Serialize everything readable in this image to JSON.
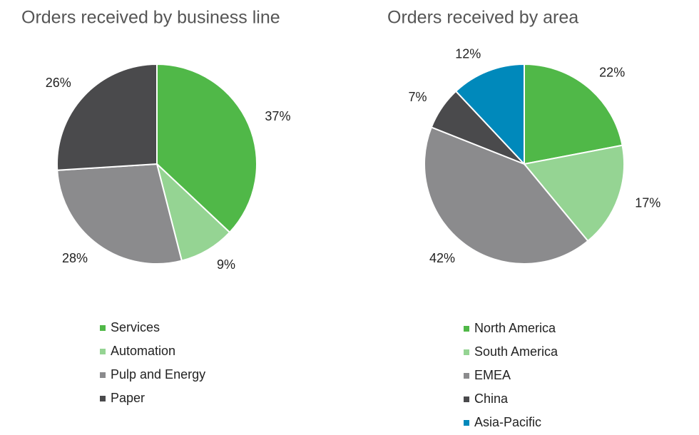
{
  "chart_data": [
    {
      "type": "pie",
      "title": "Orders received by business line",
      "categories": [
        "Services",
        "Automation",
        "Pulp and Energy",
        "Paper"
      ],
      "values": [
        37,
        9,
        28,
        26
      ],
      "value_labels": [
        "37%",
        "9%",
        "28%",
        "26%"
      ],
      "colors": [
        "#50b848",
        "#95d493",
        "#8b8b8d",
        "#4a4a4c"
      ]
    },
    {
      "type": "pie",
      "title": "Orders received by area",
      "categories": [
        "North America",
        "South America",
        "EMEA",
        "China",
        "Asia-Pacific"
      ],
      "values": [
        22,
        17,
        42,
        7,
        12
      ],
      "value_labels": [
        "22%",
        "17%",
        "42%",
        "7%",
        "12%"
      ],
      "colors": [
        "#50b848",
        "#95d493",
        "#8b8b8d",
        "#4a4a4c",
        "#0089bb"
      ]
    }
  ]
}
